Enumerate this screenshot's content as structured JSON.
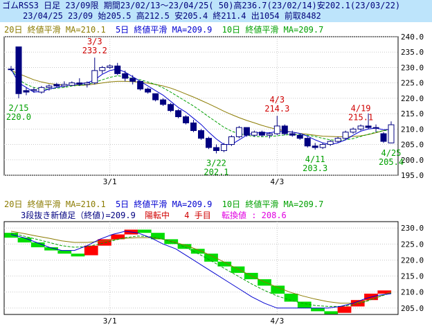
{
  "header": {
    "line1": "ゴムRSS3 日足 23/09限 期間23/02/13～23/04/25( 50)高236.7(23/02/14)安202.1(23/03/22)",
    "line2": "23/04/25 23/09 始205.5 高212.5 安205.4 終211.4 出1054 前取8482"
  },
  "colors": {
    "ma20": "#8b7b00",
    "ma5": "#0000d0",
    "ma10": "#00a000",
    "up": "#ffffff",
    "down": "#000080",
    "candle_border": "#000080",
    "label_high": "#d00000",
    "label_low": "#00a000",
    "grid": "#c8c8c8",
    "pnf_up": "#ff0000",
    "pnf_down": "#00dd00",
    "pnf_special": "#e000e0",
    "pnf_info": "#000080"
  },
  "top_legend": {
    "ma20": "20日 終値平滑 MA=210.1",
    "ma5": "5日 終値平滑 MA=209.9",
    "ma10": "10日 終値平滑 MA=209.7"
  },
  "bottom_legend": {
    "ma20": "20日 終値平滑 MA=210.1",
    "ma5": "5日 終値平滑 MA=209.9",
    "ma10": "10日 終値平滑 MA=209.7",
    "info_a": "3段抜き新値足（終値)=209.9",
    "info_b": "陽転中",
    "info_c": "4 手目",
    "info_d": "転換値 : 208.6"
  },
  "chart_data": [
    {
      "type": "candlestick",
      "ylim": [
        195,
        240
      ],
      "yticks": [
        "240.0",
        "235.0",
        "230.0",
        "225.0",
        "220.0",
        "215.0",
        "210.0",
        "205.0",
        "200.0",
        "195.0"
      ],
      "ytick_values": [
        240,
        235,
        230,
        225,
        220,
        215,
        210,
        205,
        200,
        195
      ],
      "xticks": [
        {
          "label": "3/1",
          "index": 13
        },
        {
          "label": "4/3",
          "index": 35
        }
      ],
      "candles": [
        {
          "o": 229.5,
          "h": 230.5,
          "l": 228.8,
          "c": 229.5
        },
        {
          "o": 236.7,
          "h": 236.7,
          "l": 220.0,
          "c": 221.5
        },
        {
          "o": 222.5,
          "h": 223.5,
          "l": 221.0,
          "c": 222.0
        },
        {
          "o": 222.5,
          "h": 223.5,
          "l": 221.8,
          "c": 222.8
        },
        {
          "o": 222.0,
          "h": 224.0,
          "l": 221.5,
          "c": 223.5
        },
        {
          "o": 223.5,
          "h": 224.5,
          "l": 222.5,
          "c": 224.0
        },
        {
          "o": 224.5,
          "h": 225.0,
          "l": 223.5,
          "c": 224.0
        },
        {
          "o": 224.0,
          "h": 225.5,
          "l": 223.5,
          "c": 224.5
        },
        {
          "o": 224.2,
          "h": 225.5,
          "l": 224.0,
          "c": 225.0
        },
        {
          "o": 225.0,
          "h": 226.5,
          "l": 224.0,
          "c": 224.5
        },
        {
          "o": 224.5,
          "h": 225.5,
          "l": 223.5,
          "c": 225.0
        },
        {
          "o": 225.0,
          "h": 233.2,
          "l": 224.5,
          "c": 229.0
        },
        {
          "o": 229.0,
          "h": 230.5,
          "l": 228.0,
          "c": 230.0
        },
        {
          "o": 230.0,
          "h": 231.0,
          "l": 229.5,
          "c": 230.5
        },
        {
          "o": 230.5,
          "h": 231.5,
          "l": 227.5,
          "c": 228.0
        },
        {
          "o": 228.0,
          "h": 229.0,
          "l": 225.5,
          "c": 226.5
        },
        {
          "o": 226.5,
          "h": 227.5,
          "l": 224.5,
          "c": 225.5
        },
        {
          "o": 225.5,
          "h": 225.5,
          "l": 222.5,
          "c": 223.0
        },
        {
          "o": 223.0,
          "h": 223.5,
          "l": 221.5,
          "c": 222.0
        },
        {
          "o": 221.5,
          "h": 221.5,
          "l": 219.0,
          "c": 219.5
        },
        {
          "o": 219.5,
          "h": 220.0,
          "l": 217.5,
          "c": 218.0
        },
        {
          "o": 218.0,
          "h": 218.5,
          "l": 215.5,
          "c": 216.0
        },
        {
          "o": 216.0,
          "h": 216.5,
          "l": 213.5,
          "c": 214.0
        },
        {
          "o": 214.0,
          "h": 214.5,
          "l": 211.5,
          "c": 212.0
        },
        {
          "o": 212.0,
          "h": 213.0,
          "l": 209.0,
          "c": 209.5
        },
        {
          "o": 209.5,
          "h": 210.0,
          "l": 206.5,
          "c": 207.0
        },
        {
          "o": 207.0,
          "h": 207.5,
          "l": 203.5,
          "c": 204.0
        },
        {
          "o": 204.0,
          "h": 205.0,
          "l": 202.1,
          "c": 203.0
        },
        {
          "o": 203.0,
          "h": 205.5,
          "l": 202.5,
          "c": 205.0
        },
        {
          "o": 205.0,
          "h": 208.0,
          "l": 204.5,
          "c": 207.5
        },
        {
          "o": 207.5,
          "h": 211.0,
          "l": 207.0,
          "c": 210.5
        },
        {
          "o": 210.5,
          "h": 210.5,
          "l": 207.5,
          "c": 208.0
        },
        {
          "o": 208.0,
          "h": 209.5,
          "l": 207.5,
          "c": 209.0
        },
        {
          "o": 209.0,
          "h": 209.5,
          "l": 207.5,
          "c": 208.0
        },
        {
          "o": 208.0,
          "h": 209.0,
          "l": 207.0,
          "c": 208.5
        },
        {
          "o": 208.5,
          "h": 214.3,
          "l": 208.0,
          "c": 211.0
        },
        {
          "o": 211.0,
          "h": 211.5,
          "l": 208.0,
          "c": 208.5
        },
        {
          "o": 208.5,
          "h": 209.5,
          "l": 207.5,
          "c": 208.0
        },
        {
          "o": 208.0,
          "h": 208.5,
          "l": 206.5,
          "c": 207.0
        },
        {
          "o": 207.0,
          "h": 207.5,
          "l": 204.0,
          "c": 204.5
        },
        {
          "o": 204.5,
          "h": 205.5,
          "l": 203.3,
          "c": 204.0
        },
        {
          "o": 204.0,
          "h": 205.5,
          "l": 203.5,
          "c": 205.0
        },
        {
          "o": 205.0,
          "h": 206.5,
          "l": 204.5,
          "c": 206.0
        },
        {
          "o": 206.0,
          "h": 207.5,
          "l": 205.5,
          "c": 207.0
        },
        {
          "o": 207.0,
          "h": 209.5,
          "l": 206.5,
          "c": 209.0
        },
        {
          "o": 209.0,
          "h": 210.5,
          "l": 208.5,
          "c": 210.0
        },
        {
          "o": 210.0,
          "h": 211.5,
          "l": 209.5,
          "c": 211.0
        },
        {
          "o": 211.0,
          "h": 215.1,
          "l": 210.0,
          "c": 210.5
        },
        {
          "o": 210.5,
          "h": 211.5,
          "l": 209.0,
          "c": 210.5
        },
        {
          "o": 208.5,
          "h": 209.0,
          "l": 205.5,
          "c": 206.0
        },
        {
          "o": 205.5,
          "h": 212.5,
          "l": 205.4,
          "c": 211.4
        }
      ],
      "ma5": [
        229.5,
        225.0,
        223.5,
        222.0,
        222.2,
        223.0,
        223.5,
        224.0,
        224.5,
        224.8,
        225.0,
        226.0,
        227.8,
        229.0,
        229.5,
        228.5,
        227.0,
        225.5,
        224.0,
        222.5,
        221.0,
        219.0,
        217.0,
        215.5,
        213.5,
        211.5,
        209.0,
        206.8,
        205.0,
        205.0,
        206.5,
        208.0,
        208.8,
        208.8,
        208.8,
        209.2,
        209.2,
        209.0,
        208.6,
        207.7,
        206.5,
        205.5,
        205.0,
        205.5,
        206.5,
        208.0,
        209.3,
        210.0,
        210.3,
        209.8,
        209.9
      ],
      "ma10": [
        229.5,
        226.0,
        224.5,
        223.5,
        223.0,
        223.0,
        223.3,
        223.5,
        224.0,
        224.2,
        224.5,
        225.2,
        226.0,
        226.8,
        227.3,
        227.0,
        226.5,
        226.0,
        225.3,
        224.5,
        223.4,
        222.0,
        220.5,
        219.0,
        217.5,
        215.8,
        214.0,
        212.3,
        210.6,
        209.3,
        208.5,
        208.0,
        207.6,
        207.5,
        207.6,
        207.8,
        208.1,
        208.2,
        208.2,
        208.0,
        207.6,
        207.0,
        206.5,
        206.3,
        206.5,
        206.9,
        207.6,
        208.3,
        209.0,
        209.5,
        209.7
      ],
      "ma20": [
        229.0,
        228.0,
        227.0,
        226.0,
        225.3,
        224.8,
        224.5,
        224.3,
        224.2,
        224.2,
        224.3,
        224.6,
        225.0,
        225.3,
        225.5,
        225.5,
        225.4,
        225.2,
        224.9,
        224.5,
        224.0,
        223.3,
        222.4,
        221.4,
        220.4,
        219.3,
        218.2,
        217.0,
        215.8,
        214.7,
        213.7,
        212.8,
        212.0,
        211.2,
        210.5,
        209.9,
        209.4,
        209.0,
        208.6,
        208.3,
        208.0,
        207.7,
        207.6,
        207.5,
        207.5,
        207.6,
        207.8,
        208.2,
        208.8,
        209.5,
        210.1
      ],
      "annotations": [
        {
          "index": 1,
          "text": "2/15",
          "value_text": "220.0",
          "pos": "below",
          "color": "label_low"
        },
        {
          "index": 11,
          "text": "3/3",
          "value_text": "233.2",
          "pos": "above",
          "color": "label_high"
        },
        {
          "index": 27,
          "text": "3/22",
          "value_text": "202.1",
          "pos": "below",
          "color": "label_low"
        },
        {
          "index": 35,
          "text": "4/3",
          "value_text": "214.3",
          "pos": "above",
          "color": "label_high"
        },
        {
          "index": 40,
          "text": "4/11",
          "value_text": "203.3",
          "pos": "below",
          "color": "label_low"
        },
        {
          "index": 46,
          "text": "4/19",
          "value_text": "215.1",
          "pos": "above",
          "color": "label_high"
        },
        {
          "index": 50,
          "text": "4/25",
          "value_text": "205.4",
          "pos": "below",
          "color": "label_low"
        }
      ]
    },
    {
      "type": "new_price_bars",
      "ylim": [
        203,
        232
      ],
      "yticks": [
        "230.0",
        "225.0",
        "220.0",
        "215.0",
        "210.0",
        "205.0"
      ],
      "ytick_values": [
        230,
        225,
        220,
        215,
        210,
        205
      ],
      "xticks": [
        {
          "label": "3/1",
          "index": 13
        },
        {
          "label": "4/3",
          "index": 35
        }
      ],
      "bricks": [
        {
          "from": 228.5,
          "to": 227.0,
          "dir": "down"
        },
        {
          "from": 227.0,
          "to": 225.5,
          "dir": "down"
        },
        {
          "from": 225.5,
          "to": 224.0,
          "dir": "down"
        },
        {
          "from": 224.0,
          "to": 223.0,
          "dir": "down"
        },
        {
          "from": 223.0,
          "to": 222.0,
          "dir": "down"
        },
        {
          "from": 222.0,
          "to": 221.5,
          "dir": "down"
        },
        {
          "from": 221.5,
          "to": 224.5,
          "dir": "up"
        },
        {
          "from": 224.5,
          "to": 226.5,
          "dir": "up"
        },
        {
          "from": 226.5,
          "to": 228.0,
          "dir": "up"
        },
        {
          "from": 228.0,
          "to": 229.5,
          "dir": "up"
        },
        {
          "from": 229.5,
          "to": 228.5,
          "dir": "down"
        },
        {
          "from": 228.5,
          "to": 226.5,
          "dir": "down"
        },
        {
          "from": 226.5,
          "to": 225.0,
          "dir": "down"
        },
        {
          "from": 225.0,
          "to": 223.5,
          "dir": "down"
        },
        {
          "from": 223.5,
          "to": 222.0,
          "dir": "down"
        },
        {
          "from": 222.0,
          "to": 219.5,
          "dir": "down"
        },
        {
          "from": 219.5,
          "to": 218.0,
          "dir": "down"
        },
        {
          "from": 218.0,
          "to": 216.0,
          "dir": "down"
        },
        {
          "from": 216.0,
          "to": 214.0,
          "dir": "down"
        },
        {
          "from": 214.0,
          "to": 212.0,
          "dir": "down"
        },
        {
          "from": 212.0,
          "to": 209.5,
          "dir": "down"
        },
        {
          "from": 209.5,
          "to": 207.0,
          "dir": "down"
        },
        {
          "from": 207.0,
          "to": 205.0,
          "dir": "down"
        },
        {
          "from": 205.0,
          "to": 204.0,
          "dir": "down"
        },
        {
          "from": 204.0,
          "to": 203.5,
          "dir": "down"
        },
        {
          "from": 203.5,
          "to": 205.5,
          "dir": "up"
        },
        {
          "from": 205.5,
          "to": 207.5,
          "dir": "up"
        },
        {
          "from": 207.5,
          "to": 209.5,
          "dir": "up"
        },
        {
          "from": 209.5,
          "to": 210.5,
          "dir": "up"
        }
      ],
      "ma5": [
        228.0,
        227.0,
        225.5,
        224.0,
        223.0,
        223.0,
        224.5,
        226.5,
        228.0,
        229.0,
        228.5,
        227.0,
        225.0,
        223.5,
        221.0,
        218.5,
        216.0,
        213.5,
        211.0,
        208.5,
        206.5,
        205.0,
        205.0,
        205.0,
        205.0,
        205.0,
        205.5,
        206.5,
        208.0,
        209.0,
        209.5
      ],
      "ma10": [
        228.5,
        227.5,
        226.5,
        225.5,
        224.5,
        224.0,
        224.2,
        225.0,
        226.0,
        227.0,
        227.5,
        227.3,
        226.5,
        225.3,
        223.5,
        221.5,
        219.3,
        217.0,
        214.8,
        212.5,
        210.5,
        208.8,
        207.5,
        206.5,
        205.8,
        205.5,
        205.5,
        206.0,
        207.0,
        208.5,
        209.7
      ],
      "ma20": [
        229.0,
        228.3,
        227.5,
        226.8,
        226.0,
        225.5,
        225.5,
        225.8,
        226.3,
        226.8,
        227.0,
        227.0,
        226.5,
        225.5,
        224.3,
        222.8,
        221.0,
        219.0,
        217.0,
        215.0,
        213.2,
        211.5,
        210.0,
        208.8,
        207.8,
        207.0,
        206.5,
        206.5,
        207.2,
        208.5,
        210.1
      ]
    }
  ]
}
